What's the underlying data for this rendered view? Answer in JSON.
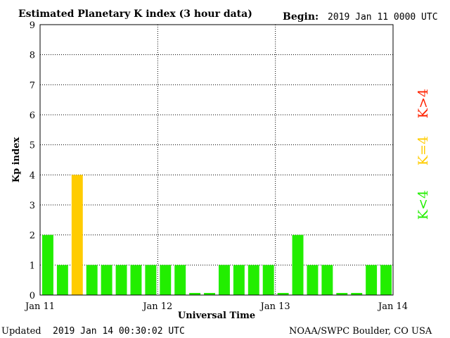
{
  "header": {
    "title": "Estimated Planetary K index (3 hour data)",
    "begin_label": "Begin:",
    "begin_value": "2019 Jan 11 0000 UTC"
  },
  "footer": {
    "updated_label": "Updated",
    "updated_value": "2019 Jan 14 00:30:02 UTC",
    "credit": "NOAA/SWPC Boulder, CO USA"
  },
  "legend": {
    "above": "K>4",
    "equal": "K=4",
    "below": "K<4"
  },
  "colors": {
    "below": "#22ee00",
    "equal": "#ffcc00",
    "above": "#ff2200"
  },
  "chart_data": {
    "type": "bar",
    "title": "Estimated Planetary K index (3 hour data)",
    "xlabel": "Universal Time",
    "ylabel": "Kp index",
    "ylim": [
      0,
      9
    ],
    "yticks": [
      0,
      1,
      2,
      3,
      4,
      5,
      6,
      7,
      8,
      9
    ],
    "xticks": [
      "Jan 11",
      "Jan 12",
      "Jan 13",
      "Jan 14"
    ],
    "grid": true,
    "interval_hours": 3,
    "values": [
      2,
      1,
      4,
      1,
      1,
      1,
      1,
      1,
      1,
      1,
      0,
      0,
      1,
      1,
      1,
      1,
      0,
      2,
      1,
      1,
      0,
      0,
      1,
      1
    ]
  }
}
